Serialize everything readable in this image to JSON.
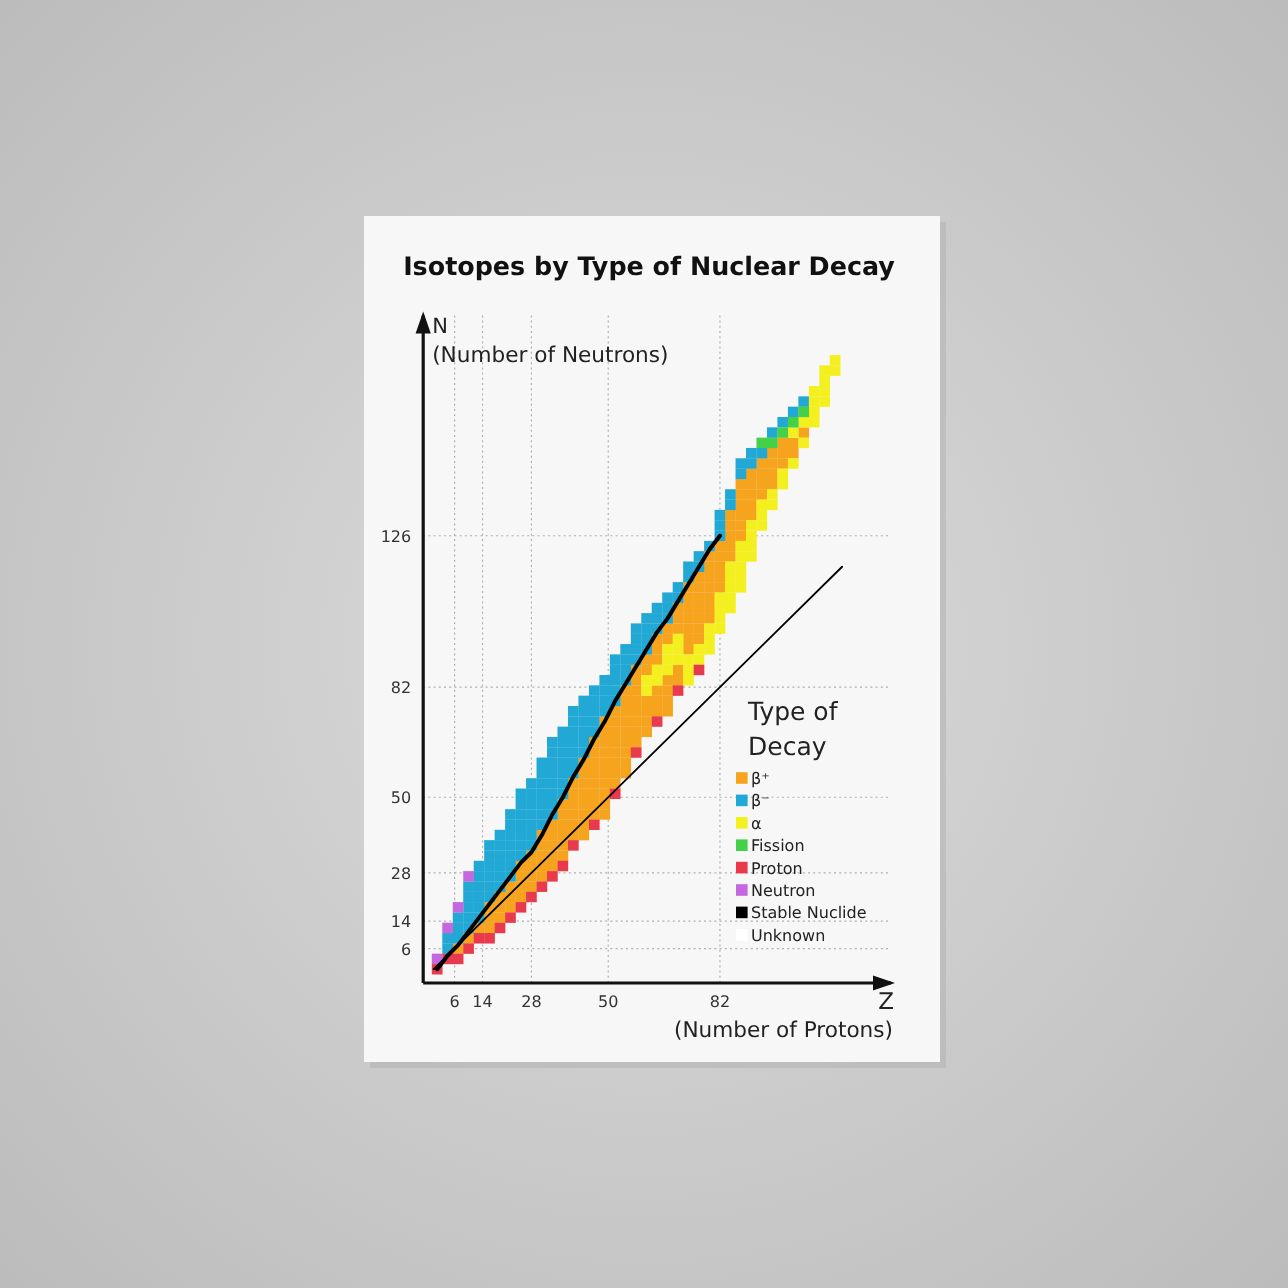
{
  "chart_data": {
    "type": "scatter",
    "title": "Isotopes by Type of Nuclear Decay",
    "xlabel": "(Number of Protons)",
    "ylabel": "N\n(Number of Neutrons)",
    "annotations": [
      "Z"
    ],
    "legend_title": "Type of\nDecay",
    "xlim": [
      -3,
      131
    ],
    "ylim": [
      -4,
      190
    ],
    "xticks": [
      6,
      14,
      28,
      50,
      82
    ],
    "yticks": [
      6,
      14,
      28,
      50,
      82,
      126
    ],
    "grid": true,
    "legend": "bottom right",
    "marker": "square",
    "series": [
      {
        "name": "β⁺",
        "color": "#f6a31e",
        "x": [
          7,
          10,
          13,
          16,
          16,
          16,
          19,
          19,
          19,
          22,
          22,
          22,
          25,
          25,
          25,
          25,
          28,
          28,
          28,
          28,
          31,
          31,
          31,
          31,
          31,
          34,
          34,
          34,
          34,
          34,
          37,
          37,
          37,
          37,
          37,
          37,
          40,
          40,
          40,
          40,
          40,
          40,
          43,
          43,
          43,
          43,
          43,
          43,
          43,
          43,
          46,
          46,
          46,
          46,
          46,
          46,
          46,
          46,
          49,
          49,
          49,
          49,
          49,
          49,
          49,
          49,
          49,
          49,
          52,
          52,
          52,
          52,
          52,
          52,
          52,
          52,
          55,
          55,
          55,
          55,
          55,
          55,
          55,
          55,
          55,
          58,
          58,
          58,
          58,
          58,
          58,
          58,
          58,
          61,
          61,
          61,
          61,
          61,
          61,
          64,
          64,
          64,
          64,
          64,
          64,
          67,
          67,
          67,
          67,
          67,
          67,
          70,
          70,
          70,
          70,
          70,
          73,
          73,
          73,
          73,
          73,
          73,
          73,
          76,
          76,
          76,
          76,
          76,
          76,
          76,
          79,
          79,
          79,
          79,
          79,
          79,
          79,
          82,
          82,
          82,
          82,
          82,
          85,
          85,
          85,
          85,
          85,
          88,
          88,
          88,
          88,
          88,
          88,
          91,
          91,
          91,
          91,
          91,
          94,
          94,
          94,
          94,
          97,
          97,
          97,
          97,
          100,
          100,
          100,
          103,
          103,
          106
        ],
        "values": [
          6,
          9,
          12,
          12,
          15,
          18,
          15,
          18,
          21,
          18,
          21,
          24,
          21,
          24,
          27,
          30,
          24,
          27,
          30,
          33,
          27,
          30,
          33,
          36,
          39,
          30,
          33,
          36,
          39,
          42,
          33,
          36,
          39,
          42,
          45,
          48,
          39,
          42,
          45,
          48,
          51,
          54,
          39,
          42,
          45,
          48,
          51,
          54,
          57,
          60,
          45,
          48,
          51,
          54,
          57,
          60,
          63,
          66,
          45,
          48,
          51,
          54,
          57,
          60,
          63,
          66,
          69,
          72,
          54,
          57,
          60,
          63,
          66,
          69,
          72,
          75,
          57,
          60,
          63,
          66,
          69,
          72,
          75,
          78,
          81,
          66,
          69,
          72,
          75,
          78,
          81,
          84,
          87,
          69,
          72,
          75,
          78,
          87,
          90,
          75,
          78,
          81,
          90,
          93,
          96,
          75,
          78,
          81,
          84,
          96,
          99,
          84,
          87,
          99,
          102,
          105,
          93,
          96,
          99,
          102,
          105,
          108,
          111,
          96,
          99,
          102,
          105,
          108,
          111,
          114,
          102,
          105,
          108,
          111,
          114,
          117,
          120,
          111,
          114,
          117,
          120,
          123,
          120,
          123,
          126,
          129,
          132,
          126,
          129,
          132,
          135,
          138,
          141,
          132,
          135,
          138,
          141,
          144,
          138,
          141,
          144,
          147,
          141,
          144,
          147,
          150,
          147,
          150,
          153,
          150,
          153,
          156
        ]
      },
      {
        "name": "β⁻",
        "color": "#22a8d4",
        "x": [
          4,
          4,
          7,
          7,
          7,
          10,
          10,
          10,
          10,
          10,
          13,
          13,
          13,
          13,
          13,
          13,
          16,
          16,
          16,
          16,
          16,
          16,
          19,
          19,
          19,
          19,
          19,
          19,
          22,
          22,
          22,
          22,
          22,
          22,
          22,
          25,
          25,
          25,
          25,
          25,
          25,
          25,
          28,
          28,
          28,
          28,
          28,
          28,
          28,
          31,
          31,
          31,
          31,
          31,
          31,
          31,
          34,
          34,
          34,
          34,
          34,
          34,
          34,
          34,
          37,
          37,
          37,
          37,
          37,
          37,
          37,
          40,
          40,
          40,
          40,
          40,
          40,
          40,
          43,
          43,
          43,
          43,
          43,
          43,
          46,
          46,
          46,
          46,
          46,
          49,
          49,
          49,
          49,
          52,
          52,
          52,
          52,
          52,
          55,
          55,
          55,
          55,
          58,
          58,
          58,
          58,
          61,
          61,
          61,
          61,
          64,
          64,
          64,
          67,
          67,
          67,
          70,
          70,
          73,
          73,
          76,
          76,
          79,
          82,
          82,
          82,
          85,
          85,
          88,
          88,
          91,
          91,
          94,
          97,
          100,
          103,
          106
        ],
        "values": [
          6,
          9,
          9,
          12,
          15,
          12,
          15,
          18,
          21,
          24,
          15,
          18,
          21,
          24,
          27,
          30,
          21,
          24,
          27,
          30,
          33,
          36,
          24,
          27,
          30,
          33,
          36,
          39,
          27,
          30,
          33,
          36,
          39,
          42,
          45,
          33,
          36,
          39,
          42,
          45,
          48,
          51,
          36,
          39,
          42,
          45,
          48,
          51,
          54,
          42,
          45,
          48,
          51,
          54,
          57,
          60,
          45,
          48,
          51,
          54,
          57,
          60,
          63,
          66,
          51,
          54,
          57,
          60,
          63,
          66,
          69,
          57,
          60,
          63,
          66,
          69,
          72,
          75,
          63,
          66,
          69,
          72,
          75,
          78,
          69,
          72,
          75,
          78,
          81,
          75,
          78,
          81,
          84,
          78,
          81,
          84,
          87,
          90,
          84,
          87,
          90,
          93,
          90,
          93,
          96,
          99,
          93,
          96,
          99,
          102,
          99,
          102,
          105,
          102,
          105,
          108,
          108,
          111,
          114,
          117,
          117,
          120,
          123,
          126,
          129,
          132,
          135,
          138,
          144,
          147,
          147,
          150,
          150,
          156,
          159,
          162,
          165
        ]
      },
      {
        "name": "α",
        "color": "#f4f020",
        "x": [
          61,
          61,
          64,
          64,
          67,
          67,
          67,
          70,
          70,
          70,
          73,
          73,
          73,
          76,
          76,
          79,
          79,
          79,
          82,
          82,
          82,
          82,
          85,
          85,
          85,
          85,
          85,
          88,
          88,
          88,
          88,
          88,
          91,
          91,
          91,
          91,
          94,
          94,
          94,
          97,
          97,
          100,
          100,
          103,
          103,
          106,
          106,
          109,
          109,
          109,
          109,
          112,
          112,
          112,
          112,
          115,
          115
        ],
        "values": [
          81,
          84,
          84,
          87,
          87,
          90,
          93,
          90,
          93,
          96,
          84,
          87,
          90,
          90,
          93,
          93,
          96,
          99,
          99,
          102,
          105,
          108,
          105,
          108,
          111,
          114,
          117,
          111,
          114,
          117,
          120,
          123,
          120,
          123,
          126,
          129,
          129,
          132,
          135,
          135,
          138,
          141,
          144,
          147,
          156,
          153,
          159,
          159,
          162,
          165,
          168,
          165,
          168,
          171,
          174,
          174,
          177
        ]
      },
      {
        "name": "Fission",
        "color": "#44d048",
        "x": [
          94,
          97,
          100,
          103,
          106
        ],
        "values": [
          153,
          153,
          156,
          159,
          162
        ]
      },
      {
        "name": "Proton",
        "color": "#e83a4c",
        "x": [
          1,
          4,
          7,
          10,
          13,
          16,
          19,
          22,
          25,
          28,
          31,
          34,
          37,
          40,
          46,
          52,
          58,
          64,
          70,
          76
        ],
        "values": [
          0,
          3,
          3,
          6,
          9,
          9,
          12,
          15,
          18,
          21,
          24,
          27,
          30,
          36,
          42,
          51,
          63,
          72,
          81,
          87
        ]
      },
      {
        "name": "Neutron",
        "color": "#c468e0",
        "x": [
          1,
          4,
          7,
          10
        ],
        "values": [
          3,
          12,
          18,
          27
        ]
      },
      {
        "name": "Stable Nuclide",
        "type": "line",
        "marker": "none",
        "color": "#000000",
        "x": [
          1,
          4,
          7,
          10,
          13,
          16,
          19,
          22,
          25,
          28,
          31,
          34,
          37,
          40,
          43,
          46,
          49,
          52,
          55,
          58,
          61,
          64,
          67,
          70,
          73,
          76,
          79,
          82
        ],
        "values": [
          0,
          4,
          7,
          11,
          15,
          19,
          23,
          27,
          31,
          34,
          39,
          45,
          50,
          56,
          61,
          67,
          72,
          78,
          83,
          88,
          93,
          98,
          102,
          107,
          112,
          117,
          122,
          126
        ]
      },
      {
        "name": "Unknown",
        "color": "#ffffff"
      },
      {
        "type": "line",
        "marker": "none",
        "color": "#000000",
        "x": [
          0,
          117
        ],
        "values": [
          0,
          117
        ]
      }
    ]
  }
}
